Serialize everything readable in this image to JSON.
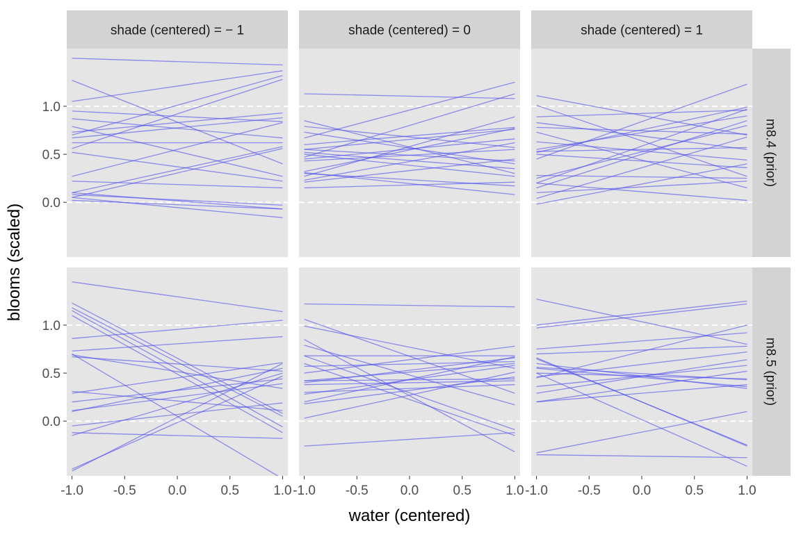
{
  "chart_data": {
    "type": "line",
    "ylabel": "blooms (scaled)",
    "xlabel": "water (centered)",
    "x_ticks": [
      "-1.0",
      "-0.5",
      "0.0",
      "0.5",
      "1.0"
    ],
    "y_ticks": [
      "0.0",
      "0.5",
      "1.0"
    ],
    "xlim": [
      -1.05,
      1.05
    ],
    "ylim": [
      -0.57,
      1.6
    ],
    "reference_lines_y": [
      0,
      1
    ],
    "grid": false,
    "line_color": "#4b4bf0",
    "panel_background": "#e5e5e5",
    "strip_background": "#d3d3d3",
    "columns": [
      "shade (centered) = − 1",
      "shade (centered) = 0",
      "shade (centered) = 1"
    ],
    "rows": [
      "m8.4 (prior)",
      "m8.5 (prior)"
    ],
    "panels": [
      {
        "row": 0,
        "col": 0,
        "lines": [
          [
            1.5,
            1.43
          ],
          [
            1.27,
            0.4
          ],
          [
            1.05,
            1.37
          ],
          [
            0.95,
            0.84
          ],
          [
            0.87,
            0.67
          ],
          [
            0.79,
            0.27
          ],
          [
            0.73,
            0.93
          ],
          [
            0.7,
            1.32
          ],
          [
            0.67,
            0.88
          ],
          [
            0.62,
            0.62
          ],
          [
            0.56,
            1.28
          ],
          [
            0.52,
            0.22
          ],
          [
            0.27,
            0.83
          ],
          [
            0.22,
            0.15
          ],
          [
            0.1,
            0.58
          ],
          [
            0.05,
            0.56
          ],
          [
            0.02,
            -0.07
          ],
          [
            0.1,
            -0.07
          ],
          [
            0.05,
            -0.16
          ],
          [
            0.08,
            -0.03
          ]
        ]
      },
      {
        "row": 0,
        "col": 1,
        "lines": [
          [
            1.13,
            1.08
          ],
          [
            0.85,
            0.3
          ],
          [
            0.79,
            0.57
          ],
          [
            0.73,
            0.4
          ],
          [
            0.67,
            1.25
          ],
          [
            0.6,
            0.78
          ],
          [
            0.55,
            0.43
          ],
          [
            0.5,
            0.27
          ],
          [
            0.47,
            1.13
          ],
          [
            0.43,
            0.55
          ],
          [
            0.32,
            0.77
          ],
          [
            0.3,
            0.17
          ],
          [
            0.27,
            0.89
          ],
          [
            0.23,
            0.62
          ],
          [
            0.21,
            0.45
          ],
          [
            0.31,
            0.08
          ],
          [
            0.15,
            0.21
          ],
          [
            0.52,
            0.35
          ],
          [
            0.55,
            0.76
          ],
          [
            0.45,
            0.66
          ]
        ]
      },
      {
        "row": 0,
        "col": 2,
        "lines": [
          [
            1.11,
            0.7
          ],
          [
            1.01,
            0.27
          ],
          [
            0.89,
            0.96
          ],
          [
            0.83,
            0.55
          ],
          [
            0.78,
            0.71
          ],
          [
            0.73,
            0.15
          ],
          [
            0.63,
            0.44
          ],
          [
            0.55,
            0.9
          ],
          [
            0.53,
            0.57
          ],
          [
            0.5,
            0.36
          ],
          [
            0.45,
            1.23
          ],
          [
            0.28,
            0.25
          ],
          [
            0.2,
            0.97
          ],
          [
            0.15,
            0.85
          ],
          [
            0.1,
            0.22
          ],
          [
            0.04,
            0.68
          ],
          [
            -0.02,
            0.4
          ],
          [
            0.2,
            0.02
          ],
          [
            0.25,
            0.8
          ],
          [
            0.52,
            0.99
          ]
        ]
      },
      {
        "row": 1,
        "col": 0,
        "lines": [
          [
            1.45,
            1.14
          ],
          [
            1.23,
            0.08
          ],
          [
            1.18,
            0.05
          ],
          [
            1.1,
            -0.12
          ],
          [
            0.86,
            1.05
          ],
          [
            0.73,
            0.88
          ],
          [
            0.69,
            0.34
          ],
          [
            0.7,
            -0.6
          ],
          [
            0.31,
            0.11
          ],
          [
            0.29,
            0.61
          ],
          [
            0.2,
            0.44
          ],
          [
            0.1,
            0.55
          ],
          [
            0.11,
            0.39
          ],
          [
            -0.05,
            0.19
          ],
          [
            -0.12,
            -0.18
          ],
          [
            -0.15,
            0.5
          ],
          [
            -0.5,
            0.47
          ],
          [
            -0.52,
            0.6
          ],
          [
            1.15,
            -0.06
          ],
          [
            0.67,
            0.52
          ]
        ]
      },
      {
        "row": 1,
        "col": 1,
        "lines": [
          [
            1.22,
            1.19
          ],
          [
            1.06,
            0.29
          ],
          [
            0.99,
            0.55
          ],
          [
            0.85,
            -0.32
          ],
          [
            0.79,
            0.17
          ],
          [
            0.68,
            0.68
          ],
          [
            0.6,
            -0.15
          ],
          [
            0.5,
            0.78
          ],
          [
            0.42,
            0.44
          ],
          [
            0.4,
            0.66
          ],
          [
            0.38,
            0.42
          ],
          [
            0.3,
            0.38
          ],
          [
            0.2,
            0.67
          ],
          [
            0.18,
            0.46
          ],
          [
            0.03,
            0.51
          ],
          [
            -0.26,
            -0.12
          ],
          [
            0.57,
            0.62
          ],
          [
            0.42,
            0.6
          ],
          [
            0.68,
            -0.09
          ],
          [
            0.28,
            0.58
          ]
        ]
      },
      {
        "row": 1,
        "col": 2,
        "lines": [
          [
            1.27,
            0.8
          ],
          [
            1.0,
            1.25
          ],
          [
            0.97,
            1.22
          ],
          [
            0.75,
            0.92
          ],
          [
            0.7,
            0.78
          ],
          [
            0.65,
            -0.25
          ],
          [
            0.6,
            0.34
          ],
          [
            0.56,
            0.43
          ],
          [
            0.5,
            -0.47
          ],
          [
            0.46,
            0.72
          ],
          [
            0.45,
            1.0
          ],
          [
            0.36,
            0.58
          ],
          [
            0.29,
            0.64
          ],
          [
            0.2,
            0.38
          ],
          [
            0.2,
            0.52
          ],
          [
            -0.33,
            0.1
          ],
          [
            -0.35,
            -0.38
          ],
          [
            0.5,
            0.44
          ],
          [
            0.66,
            -0.26
          ],
          [
            0.55,
            0.36
          ]
        ]
      }
    ]
  }
}
